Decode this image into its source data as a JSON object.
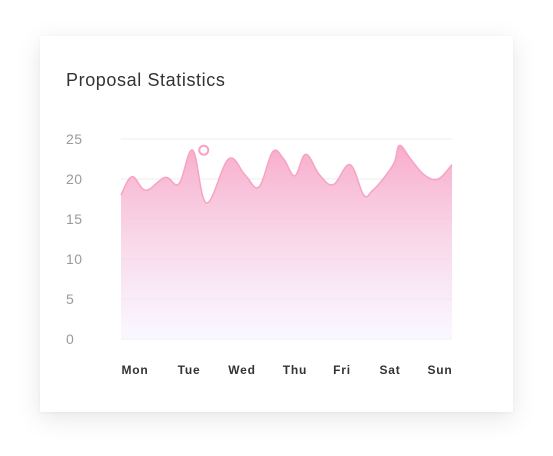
{
  "card": {
    "title": "Proposal Statistics"
  },
  "chart_data": {
    "type": "area",
    "title": "Proposal Statistics",
    "xlabel": "",
    "ylabel": "",
    "categories": [
      "Mon",
      "Tue",
      "Wed",
      "Thu",
      "Fri",
      "Sat",
      "Sun"
    ],
    "ylim": [
      0,
      25
    ],
    "yticks": [
      0,
      5,
      10,
      15,
      20,
      25
    ],
    "grid": true,
    "x": [
      0.0,
      0.2,
      0.45,
      0.8,
      1.05,
      1.3,
      1.55,
      1.95,
      2.25,
      2.5,
      2.75,
      2.95,
      3.15,
      3.35,
      3.6,
      3.85,
      4.15,
      4.4,
      4.55,
      4.75,
      4.95,
      5.05,
      5.25,
      5.5,
      5.75,
      6.0
    ],
    "values": [
      18.0,
      20.3,
      18.6,
      20.2,
      19.4,
      23.6,
      17.0,
      22.5,
      20.5,
      19.0,
      23.4,
      22.5,
      20.4,
      23.1,
      20.5,
      19.3,
      21.8,
      18.0,
      18.5,
      20.0,
      22.0,
      24.2,
      22.5,
      20.5,
      20.0,
      21.8
    ],
    "highlight": {
      "x": 1.5,
      "value": 23.6
    },
    "colors": {
      "line": "#f7a3c2",
      "fill_top": "#f8a8c8",
      "fill_bottom": "#f6f2ff",
      "grid": "#eeeeee",
      "marker_fill": "#ffffff"
    }
  }
}
